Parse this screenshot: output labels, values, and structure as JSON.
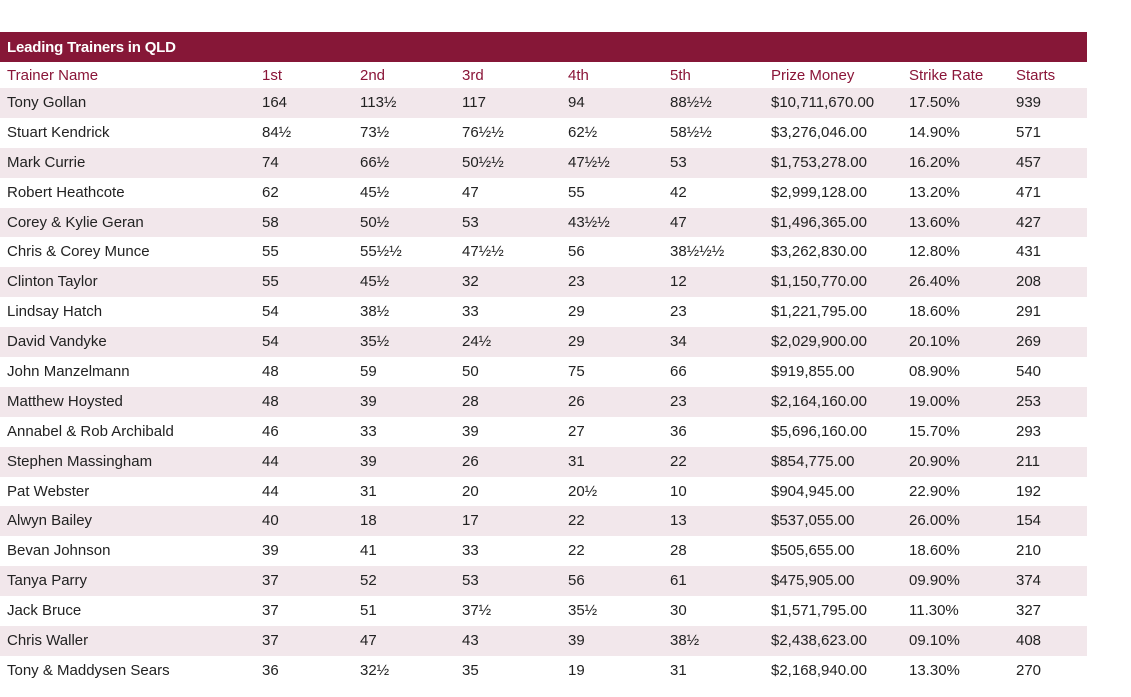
{
  "title": "Leading Trainers in QLD",
  "colors": {
    "header_bg": "#861737",
    "header_text": "#8a1538",
    "row_shade": "#f2e7eb"
  },
  "columns": [
    "Trainer Name",
    "1st",
    "2nd",
    "3rd",
    "4th",
    "5th",
    "Prize Money",
    "Strike Rate",
    "Starts"
  ],
  "rows": [
    [
      "Tony Gollan",
      "164",
      "113½",
      "117",
      "94",
      "88½½",
      "$10,711,670.00",
      "17.50%",
      "939"
    ],
    [
      "Stuart Kendrick",
      "84½",
      "73½",
      "76½½",
      "62½",
      "58½½",
      "$3,276,046.00",
      "14.90%",
      "571"
    ],
    [
      "Mark Currie",
      "74",
      "66½",
      "50½½",
      "47½½",
      "53",
      "$1,753,278.00",
      "16.20%",
      "457"
    ],
    [
      "Robert Heathcote",
      "62",
      "45½",
      "47",
      "55",
      "42",
      "$2,999,128.00",
      "13.20%",
      "471"
    ],
    [
      "Corey & Kylie Geran",
      "58",
      "50½",
      "53",
      "43½½",
      "47",
      "$1,496,365.00",
      "13.60%",
      "427"
    ],
    [
      "Chris & Corey Munce",
      "55",
      "55½½",
      "47½½",
      "56",
      "38½½½",
      "$3,262,830.00",
      "12.80%",
      "431"
    ],
    [
      "Clinton Taylor",
      "55",
      "45½",
      "32",
      "23",
      "12",
      "$1,150,770.00",
      "26.40%",
      "208"
    ],
    [
      "Lindsay Hatch",
      "54",
      "38½",
      "33",
      "29",
      "23",
      "$1,221,795.00",
      "18.60%",
      "291"
    ],
    [
      "David Vandyke",
      "54",
      "35½",
      "24½",
      "29",
      "34",
      "$2,029,900.00",
      "20.10%",
      "269"
    ],
    [
      "John Manzelmann",
      "48",
      "59",
      "50",
      "75",
      "66",
      "$919,855.00",
      "08.90%",
      "540"
    ],
    [
      "Matthew Hoysted",
      "48",
      "39",
      "28",
      "26",
      "23",
      "$2,164,160.00",
      "19.00%",
      "253"
    ],
    [
      "Annabel & Rob Archibald",
      "46",
      "33",
      "39",
      "27",
      "36",
      "$5,696,160.00",
      "15.70%",
      "293"
    ],
    [
      "Stephen Massingham",
      "44",
      "39",
      "26",
      "31",
      "22",
      "$854,775.00",
      "20.90%",
      "211"
    ],
    [
      "Pat Webster",
      "44",
      "31",
      "20",
      "20½",
      "10",
      "$904,945.00",
      "22.90%",
      "192"
    ],
    [
      "Alwyn Bailey",
      "40",
      "18",
      "17",
      "22",
      "13",
      "$537,055.00",
      "26.00%",
      "154"
    ],
    [
      "Bevan Johnson",
      "39",
      "41",
      "33",
      "22",
      "28",
      "$505,655.00",
      "18.60%",
      "210"
    ],
    [
      "Tanya Parry",
      "37",
      "52",
      "53",
      "56",
      "61",
      "$475,905.00",
      "09.90%",
      "374"
    ],
    [
      "Jack Bruce",
      "37",
      "51",
      "37½",
      "35½",
      "30",
      "$1,571,795.00",
      "11.30%",
      "327"
    ],
    [
      "Chris Waller",
      "37",
      "47",
      "43",
      "39",
      "38½",
      "$2,438,623.00",
      "09.10%",
      "408"
    ],
    [
      "Tony & Maddysen Sears",
      "36",
      "32½",
      "35",
      "19",
      "31",
      "$2,168,940.00",
      "13.30%",
      "270"
    ]
  ]
}
